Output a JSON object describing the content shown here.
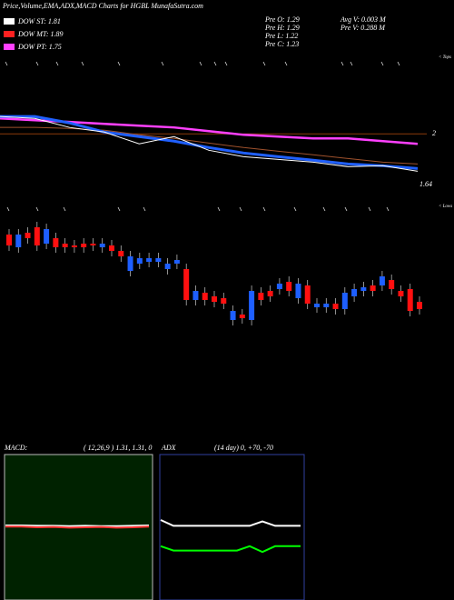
{
  "header": {
    "title": "Price,Volume,EMA,ADX,MACD Charts for HGBL MunafaSutra.com"
  },
  "legend": [
    {
      "text": "DOW ST: 1.81",
      "color": "#ffffff"
    },
    {
      "text": "DOW MT: 1.89",
      "color": "#ff2020"
    },
    {
      "text": "DOW PT: 1.75",
      "color": "#ff40ff"
    }
  ],
  "info": {
    "left": [
      "Pre  O: 1.29",
      "Pre  H: 1.29",
      "Pre  L: 1.22",
      "Pre  C: 1.23"
    ],
    "right": [
      "Avg V: 0.003 M",
      "Pre  V: 0.288  M"
    ]
  },
  "chart_data": [
    {
      "type": "line",
      "ylim": [
        1.45,
        2.58
      ],
      "yticks": [
        2,
        1.64
      ],
      "grid": true,
      "annotations": [
        "< Tops",
        "< Lows"
      ],
      "series": [
        {
          "color": "#a0522d",
          "width": 1,
          "values": [
            2.047,
            2.047,
            2.04,
            2.027,
            1.993,
            1.967,
            1.933,
            1.9,
            1.873,
            1.847,
            1.82,
            1.793,
            1.78
          ]
        },
        {
          "color": "#ff40ff",
          "width": 2.5,
          "values": [
            2.113,
            2.1,
            2.087,
            2.073,
            2.06,
            2.047,
            2.02,
            1.993,
            1.98,
            1.967,
            1.967,
            1.947,
            1.927
          ]
        },
        {
          "color": "#2060ff",
          "width": 3,
          "values": [
            2.127,
            2.127,
            2.08,
            2.013,
            1.98,
            1.947,
            1.9,
            1.86,
            1.833,
            1.807,
            1.78,
            1.767,
            1.747
          ]
        },
        {
          "color": "#ffffff",
          "width": 1,
          "values": [
            2.127,
            2.113,
            2.047,
            2.013,
            1.927,
            1.98,
            1.88,
            1.833,
            1.813,
            1.793,
            1.76,
            1.767,
            1.727
          ]
        }
      ]
    },
    {
      "type": "candlestick",
      "ylim": [
        1.0,
        1.65
      ],
      "up_color": "#1e5fff",
      "down_color": "#ff1010",
      "open": [
        1.56,
        1.49,
        1.57,
        1.6,
        1.51,
        1.54,
        1.51,
        1.5,
        1.51,
        1.51,
        1.49,
        1.5,
        1.47,
        1.36,
        1.4,
        1.41,
        1.41,
        1.37,
        1.4,
        1.37,
        1.2,
        1.24,
        1.22,
        1.21,
        1.09,
        1.12,
        1.09,
        1.24,
        1.25,
        1.26,
        1.3,
        1.21,
        1.28,
        1.16,
        1.16,
        1.18,
        1.15,
        1.22,
        1.25,
        1.28,
        1.28,
        1.31,
        1.25,
        1.26,
        1.19
      ],
      "close": [
        1.5,
        1.56,
        1.54,
        1.5,
        1.59,
        1.49,
        1.49,
        1.49,
        1.49,
        1.5,
        1.51,
        1.47,
        1.44,
        1.44,
        1.43,
        1.43,
        1.43,
        1.4,
        1.42,
        1.2,
        1.25,
        1.2,
        1.19,
        1.18,
        1.14,
        1.1,
        1.25,
        1.2,
        1.22,
        1.29,
        1.25,
        1.29,
        1.18,
        1.18,
        1.18,
        1.15,
        1.24,
        1.26,
        1.27,
        1.25,
        1.33,
        1.26,
        1.22,
        1.14,
        1.15
      ]
    },
    {
      "type": "line",
      "title": "MACD:",
      "subtitle": "( 12,26,9 ) 1.31, 1.31, 0",
      "ylim": [
        -2,
        2
      ],
      "background": "#002200",
      "series": [
        {
          "color": "#ffffff",
          "values": [
            0.05,
            0.05,
            0.04,
            0.04,
            0.03,
            0.04,
            0.03,
            0.03,
            0.04,
            0.05
          ]
        },
        {
          "color": "#ff3030",
          "values": [
            0.02,
            0.02,
            0.0,
            0.01,
            -0.01,
            0.0,
            0.01,
            -0.01,
            0.0,
            0.02
          ]
        }
      ]
    },
    {
      "type": "line",
      "title": "ADX",
      "subtitle": "(14  day) 0, +70, -70",
      "ylim": [
        0,
        100
      ],
      "background": "#000000",
      "series": [
        {
          "color": "#ffffff",
          "values": [
            55,
            51,
            51,
            51,
            51,
            51,
            51,
            51,
            54,
            51,
            51,
            51
          ]
        },
        {
          "color": "#00ff00",
          "values": [
            37,
            34,
            34,
            34,
            34,
            34,
            34,
            37,
            33,
            37,
            37,
            37
          ]
        }
      ]
    }
  ]
}
